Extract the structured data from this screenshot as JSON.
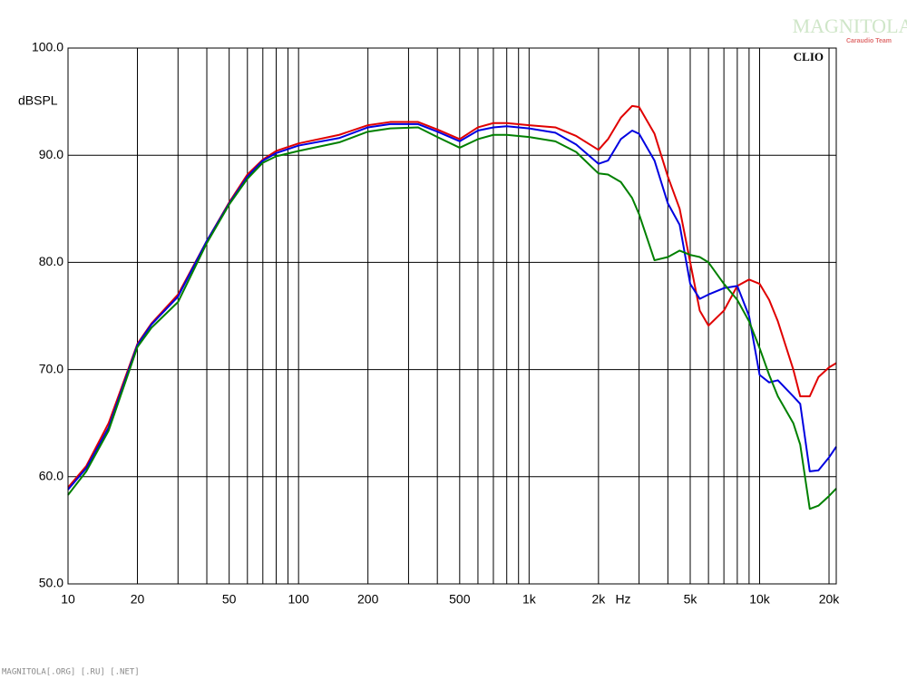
{
  "chart_data": {
    "type": "line",
    "brand": "CLIO",
    "xlabel": "Hz",
    "ylabel": "dBSPL",
    "xscale": "log",
    "grid": true,
    "minor_grid": true,
    "xlim": [
      10,
      21500
    ],
    "ylim": [
      50,
      100
    ],
    "xticks": [
      10,
      20,
      50,
      100,
      200,
      500,
      {
        "value": 1000,
        "label": "1k"
      },
      {
        "value": 2000,
        "label": "2k"
      },
      {
        "value": 5000,
        "label": "5k"
      },
      {
        "value": 10000,
        "label": "10k"
      },
      {
        "value": 20000,
        "label": "20k"
      }
    ],
    "yticks": [
      {
        "value": 50,
        "label": "50.0"
      },
      {
        "value": 60,
        "label": "60.0"
      },
      {
        "value": 70,
        "label": "70.0"
      },
      {
        "value": 80,
        "label": "80.0"
      },
      {
        "value": 90,
        "label": "90.0"
      },
      {
        "value": 100,
        "label": "100.0"
      }
    ],
    "x": [
      10,
      12,
      15,
      20,
      23,
      30,
      40,
      50,
      60,
      70,
      80,
      100,
      150,
      200,
      250,
      330,
      400,
      500,
      600,
      700,
      800,
      1000,
      1300,
      1600,
      2000,
      2200,
      2500,
      2800,
      3000,
      3500,
      4000,
      4500,
      5000,
      5500,
      6000,
      7000,
      8000,
      9000,
      10000,
      11000,
      12000,
      14000,
      15000,
      16500,
      18000,
      20000,
      21500
    ],
    "series": [
      {
        "color": "#e00000",
        "values": [
          59,
          61,
          65,
          72.4,
          74.3,
          77,
          82,
          85.6,
          88.2,
          89.6,
          90.4,
          91.1,
          91.9,
          92.8,
          93.1,
          93.1,
          92.4,
          91.5,
          92.6,
          93,
          93,
          92.8,
          92.6,
          91.8,
          90.5,
          91.5,
          93.5,
          94.6,
          94.5,
          92,
          88,
          85,
          80,
          75.5,
          74.1,
          75.5,
          77.8,
          78.4,
          78,
          76.5,
          74.5,
          70,
          67.5,
          67.5,
          69.3,
          70.2,
          70.6
        ]
      },
      {
        "color": "#0000e0",
        "values": [
          58.8,
          60.8,
          64.6,
          72.3,
          74.2,
          76.8,
          82,
          85.5,
          88,
          89.5,
          90.2,
          90.9,
          91.6,
          92.6,
          92.9,
          92.9,
          92.2,
          91.3,
          92.3,
          92.6,
          92.7,
          92.5,
          92.1,
          91,
          89.2,
          89.5,
          91.5,
          92.3,
          92,
          89.5,
          85.5,
          83.5,
          78,
          76.6,
          77,
          77.6,
          77.8,
          75,
          69.5,
          68.8,
          69,
          67.5,
          66.8,
          60.5,
          60.6,
          61.8,
          62.8
        ]
      },
      {
        "color": "#008000",
        "values": [
          58.3,
          60.5,
          64.3,
          72.1,
          73.9,
          76.3,
          81.8,
          85.4,
          87.8,
          89.3,
          89.9,
          90.4,
          91.2,
          92.2,
          92.5,
          92.6,
          91.7,
          90.7,
          91.5,
          91.9,
          91.9,
          91.7,
          91.3,
          90.3,
          88.3,
          88.2,
          87.5,
          86,
          84.5,
          80.2,
          80.5,
          81.1,
          80.7,
          80.5,
          80,
          78,
          76.5,
          74.5,
          72,
          69.5,
          67.5,
          65,
          63,
          57,
          57.3,
          58.2,
          58.9
        ]
      }
    ]
  },
  "watermark": {
    "title": "MAGNITOLA",
    "subtitle": "Caraudio Team"
  },
  "footer": "MAGNITOLA[.ORG] [.RU] [.NET]"
}
